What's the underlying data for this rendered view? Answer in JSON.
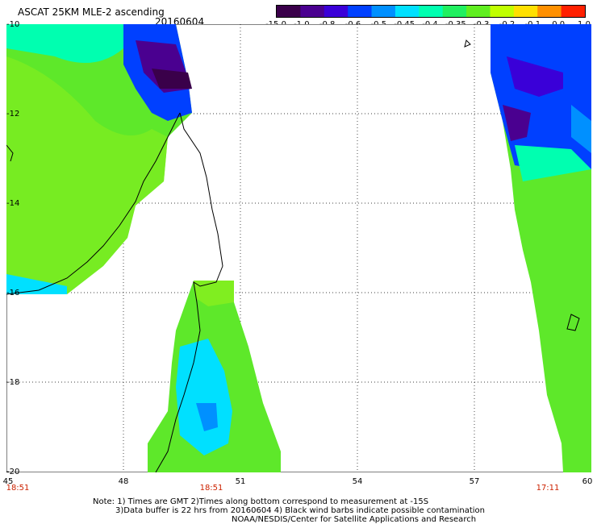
{
  "header": {
    "title": "ASCAT 25KM MLE-2 ascending",
    "date": "20160604"
  },
  "colorbar": {
    "labels": [
      "-15.0",
      "-1.0",
      "-0.8",
      "-0.6",
      "-0.5",
      "-0.45",
      "-0.4",
      "-0.35",
      "-0.3",
      "-0.2",
      "-0.1",
      "0.0",
      "1.0"
    ],
    "colors": [
      "#3a004a",
      "#4a0090",
      "#3a00d8",
      "#0040ff",
      "#0090ff",
      "#00e0ff",
      "#00ffb0",
      "#20f060",
      "#60ee20",
      "#c0ff00",
      "#ffe000",
      "#ff9000",
      "#ff2000"
    ]
  },
  "map": {
    "lat_ticks": [
      "-10",
      "-12",
      "-14",
      "-16",
      "-18",
      "-20"
    ],
    "lon_ticks": [
      "45",
      "48",
      "51",
      "54",
      "57",
      "60"
    ],
    "pass_times": [
      "18:51",
      "18:51",
      "17:11"
    ]
  },
  "footer": {
    "line1": "Note: 1) Times are GMT 2)Times along bottom correspond to measurement at -15S",
    "line2": "3)Data buffer is 22 hrs from 20160604 4) Black wind barbs indicate possible contamination",
    "line3": "NOAA/NESDIS/Center for Satellite Applications and Research"
  }
}
